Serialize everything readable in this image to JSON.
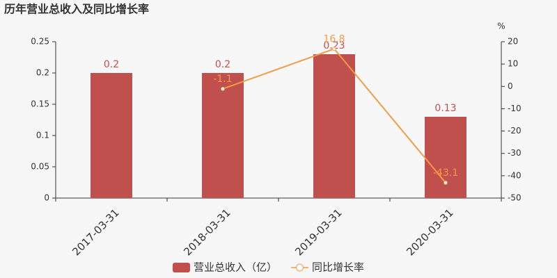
{
  "chart_data": {
    "type": "bar",
    "title": "历年营业总收入及同比增长率",
    "categories": [
      "2017-03-31",
      "2018-03-31",
      "2019-03-31",
      "2020-03-31"
    ],
    "series": [
      {
        "name": "营业总收入（亿）",
        "color": "#c0504d",
        "values": [
          0.2,
          0.2,
          0.23,
          0.13
        ]
      },
      {
        "name": "同比增长率",
        "type": "line",
        "axis": "y2",
        "color": "#f59a45",
        "values": [
          null,
          -1.1,
          16.8,
          -43.1
        ]
      }
    ],
    "ylim": [
      0,
      0.25
    ],
    "yticks": [
      0,
      0.05,
      0.1,
      0.15,
      0.2,
      0.25
    ],
    "y2label": "%",
    "y2lim": [
      -50,
      20
    ],
    "y2ticks": [
      -50,
      -40,
      -30,
      -20,
      -10,
      0,
      10,
      20
    ],
    "legend": "bottom"
  }
}
